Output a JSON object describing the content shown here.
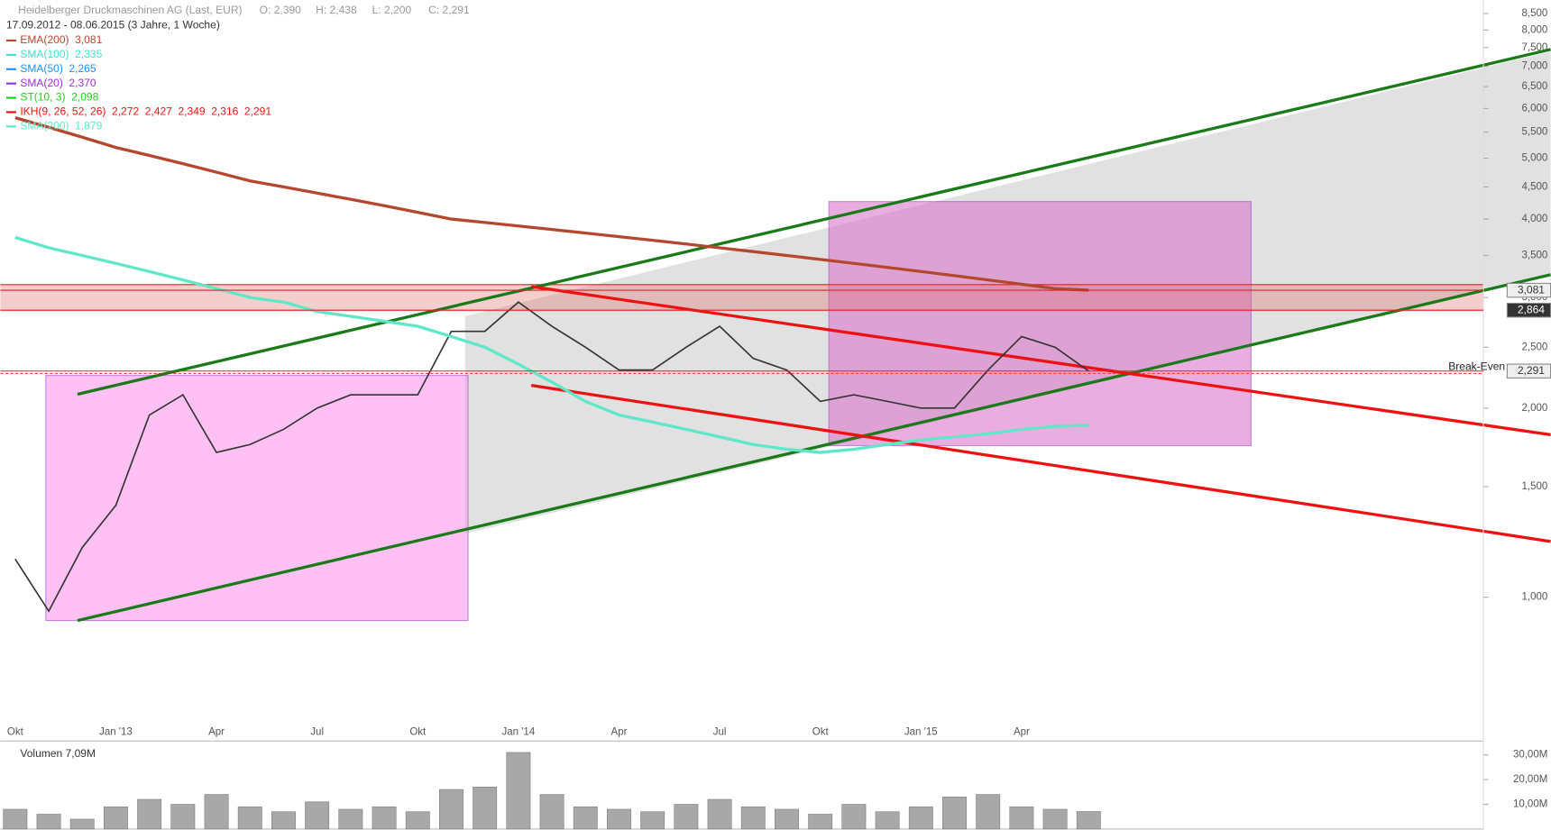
{
  "chart_data": {
    "type": "line",
    "title": "Heidelberger Druckmaschinen AG (Last, EUR)",
    "ohlc": [
      "O: 2,390",
      "H: 2,438",
      "L: 2,200",
      "C: 2,291"
    ],
    "subtitle": "17.09.2012 - 08.06.2015 (3 Jahre, 1 Woche)",
    "log_scale": true,
    "categories": [
      "Okt",
      null,
      null,
      "Jan '13",
      null,
      null,
      "Apr",
      null,
      null,
      "Jul",
      null,
      null,
      "Okt",
      null,
      null,
      "Jan '14",
      null,
      null,
      "Apr",
      null,
      null,
      "Jul",
      null,
      null,
      "Okt",
      null,
      null,
      "Jan '15",
      null,
      null,
      "Apr",
      null,
      null
    ],
    "ylim": [
      0.59,
      8.93
    ],
    "yticks": [
      {
        "value": 1.0,
        "label": "1,000"
      },
      {
        "value": 1.5,
        "label": "1,500"
      },
      {
        "value": 2.0,
        "label": "2,000"
      },
      {
        "value": 2.5,
        "label": "2,500"
      },
      {
        "value": 3.0,
        "label": "3,000"
      },
      {
        "value": 3.5,
        "label": "3,500"
      },
      {
        "value": 4.0,
        "label": "4,000"
      },
      {
        "value": 4.5,
        "label": "4,500"
      },
      {
        "value": 5.0,
        "label": "5,000"
      },
      {
        "value": 5.5,
        "label": "5,500"
      },
      {
        "value": 6.0,
        "label": "6,000"
      },
      {
        "value": 6.5,
        "label": "6,500"
      },
      {
        "value": 7.0,
        "label": "7,000"
      },
      {
        "value": 7.5,
        "label": "7,500"
      },
      {
        "value": 8.0,
        "label": "8,000"
      },
      {
        "value": 8.5,
        "label": "8,500"
      }
    ],
    "series": [
      {
        "color": "#333333",
        "values": [
          1.15,
          0.95,
          1.2,
          1.4,
          1.95,
          2.1,
          1.7,
          1.75,
          1.85,
          2.0,
          2.1,
          2.1,
          2.1,
          2.65,
          2.65,
          2.95,
          2.7,
          2.5,
          2.3,
          2.3,
          2.5,
          2.7,
          2.4,
          2.3,
          2.05,
          2.1,
          2.05,
          2.0,
          2.0,
          2.3,
          2.6,
          2.5,
          2.291
        ]
      },
      {
        "name": "EMA(200)",
        "value_label": "3,081",
        "color": "#b5472e",
        "values": [
          5.8,
          5.6,
          5.4,
          5.2,
          5.05,
          4.9,
          4.75,
          4.6,
          4.5,
          4.4,
          4.3,
          4.2,
          4.1,
          4.0,
          3.95,
          3.9,
          3.85,
          3.8,
          3.75,
          3.7,
          3.65,
          3.6,
          3.55,
          3.5,
          3.45,
          3.4,
          3.35,
          3.3,
          3.25,
          3.2,
          3.15,
          3.1,
          3.081
        ]
      },
      {
        "name": "SMA(200)",
        "value_label": "1,879",
        "color": "#5ee8c8",
        "values": [
          3.74,
          3.6,
          3.5,
          3.4,
          3.3,
          3.2,
          3.1,
          3.0,
          2.95,
          2.85,
          2.8,
          2.75,
          2.7,
          2.6,
          2.5,
          2.35,
          2.2,
          2.05,
          1.95,
          1.9,
          1.85,
          1.8,
          1.75,
          1.72,
          1.7,
          1.72,
          1.75,
          1.78,
          1.8,
          1.82,
          1.85,
          1.87,
          1.879
        ]
      }
    ],
    "indicators": [
      {
        "name": "SMA(100)",
        "color": "#40e0d0",
        "labels": [
          "2,335"
        ]
      },
      {
        "name": "SMA(50)",
        "color": "#1e90ff",
        "labels": [
          "2,265"
        ]
      },
      {
        "name": "SMA(20)",
        "color": "#9b30d9",
        "labels": [
          "2,370"
        ]
      },
      {
        "name": "ST(10, 3)",
        "color": "#22cc22",
        "labels": [
          "2,098"
        ]
      },
      {
        "name": "IKH(9, 26, 52, 26)",
        "color": "#ee1111",
        "labels": [
          "2,272",
          "2,427",
          "2,349",
          "2,316",
          "2,291"
        ]
      }
    ],
    "price_markers": [
      {
        "value": 3.081,
        "label": "3,081"
      },
      {
        "value": 2.864,
        "label": "2,864"
      },
      {
        "value": 2.291,
        "label": "2,291"
      }
    ],
    "break_even_label": "Break-Even",
    "volume": {
      "title": "Volumen 7,09M",
      "color": "#a8a8a8",
      "values": [
        8,
        6,
        4,
        9,
        12,
        10,
        14,
        9,
        7,
        11,
        8,
        9,
        7,
        16,
        17,
        31,
        14,
        9,
        8,
        7,
        10,
        12,
        9,
        8,
        6,
        10,
        7,
        9,
        13,
        14,
        9,
        8,
        7.09
      ],
      "ylim": [
        0,
        33.6
      ],
      "yticks": [
        {
          "value": 10,
          "label": "10,00M"
        },
        {
          "value": 20,
          "label": "20,00M"
        },
        {
          "value": 30,
          "label": "30,00M"
        }
      ]
    }
  }
}
